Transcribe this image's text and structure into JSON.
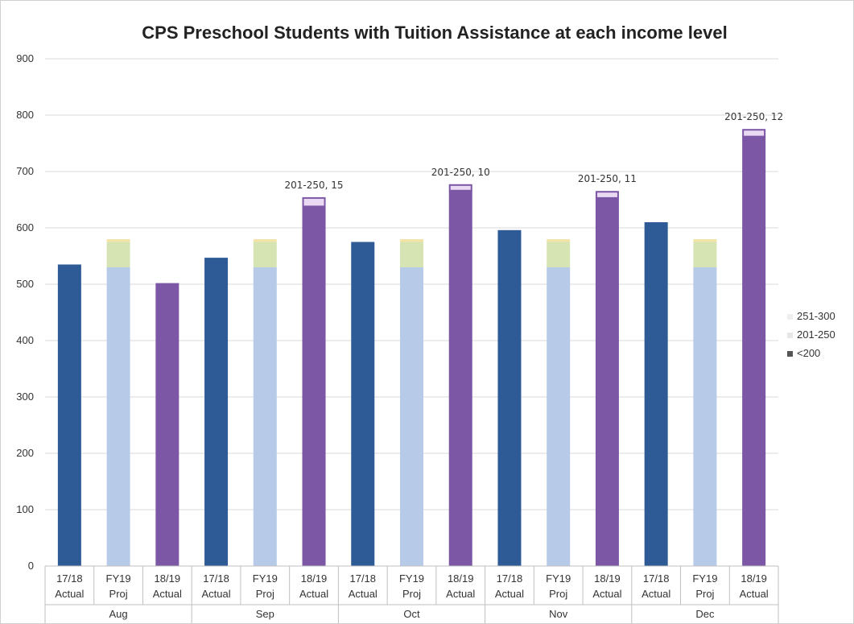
{
  "chart_data": {
    "type": "bar",
    "stacked": true,
    "title": "CPS Preschool Students with Tuition Assistance at each income level",
    "xlabel": "",
    "ylabel": "",
    "ylim": [
      0,
      900
    ],
    "yticks": [
      0,
      100,
      200,
      300,
      400,
      500,
      600,
      700,
      800,
      900
    ],
    "grid": true,
    "legend_position": "right",
    "groups": [
      "Aug",
      "Sep",
      "Oct",
      "Nov",
      "Dec"
    ],
    "categories": [
      [
        "17/18",
        "Actual"
      ],
      [
        "FY19",
        "Proj"
      ],
      [
        "18/19",
        "Actual"
      ],
      [
        "17/18",
        "Actual"
      ],
      [
        "FY19",
        "Proj"
      ],
      [
        "18/19",
        "Actual"
      ],
      [
        "17/18",
        "Actual"
      ],
      [
        "FY19",
        "Proj"
      ],
      [
        "18/19",
        "Actual"
      ],
      [
        "17/18",
        "Actual"
      ],
      [
        "FY19",
        "Proj"
      ],
      [
        "18/19",
        "Actual"
      ],
      [
        "17/18",
        "Actual"
      ],
      [
        "FY19",
        "Proj"
      ],
      [
        "18/19",
        "Actual"
      ]
    ],
    "bar_kinds": [
      "actual1718",
      "proj",
      "actual1819",
      "actual1718",
      "proj",
      "actual1819",
      "actual1718",
      "proj",
      "actual1819",
      "actual1718",
      "proj",
      "actual1819",
      "actual1718",
      "proj",
      "actual1819"
    ],
    "series": [
      {
        "name": "<200",
        "values": [
          535,
          530,
          502,
          547,
          530,
          638,
          575,
          530,
          666,
          596,
          530,
          653,
          610,
          530,
          762
        ]
      },
      {
        "name": "201-250",
        "values": [
          0,
          45,
          0,
          0,
          45,
          15,
          0,
          45,
          10,
          0,
          45,
          11,
          0,
          45,
          12
        ]
      },
      {
        "name": "251-300",
        "values": [
          0,
          5,
          0,
          0,
          5,
          0,
          0,
          5,
          0,
          0,
          5,
          0,
          0,
          5,
          0
        ]
      }
    ],
    "annotations": [
      {
        "bar": 5,
        "text": "201-250, 15"
      },
      {
        "bar": 8,
        "text": "201-250, 10"
      },
      {
        "bar": 11,
        "text": "201-250, 11"
      },
      {
        "bar": 14,
        "text": "201-250, 12"
      }
    ],
    "legend": [
      {
        "series": "251-300",
        "label": "251-300"
      },
      {
        "series": "201-250",
        "label": "201-250"
      },
      {
        "series": "<200",
        "label": "<200"
      }
    ],
    "colors": {
      "actual1718_base": "#2e5b96",
      "actual1819_base": "#7b57a6",
      "proj_base": "#b7cbe8",
      "proj_201_250": "#d6e4b4",
      "proj_251_300": "#f4e3a8",
      "actual1819_201_250": "#ead9f2",
      "actual1819_201_250_border": "#7b57a6",
      "legend_251_300": "#eeeeee",
      "legend_201_250": "#e6e6e6",
      "legend_base": "#555555",
      "grid": "#d9d9d9",
      "axis": "#bfbfbf"
    }
  }
}
